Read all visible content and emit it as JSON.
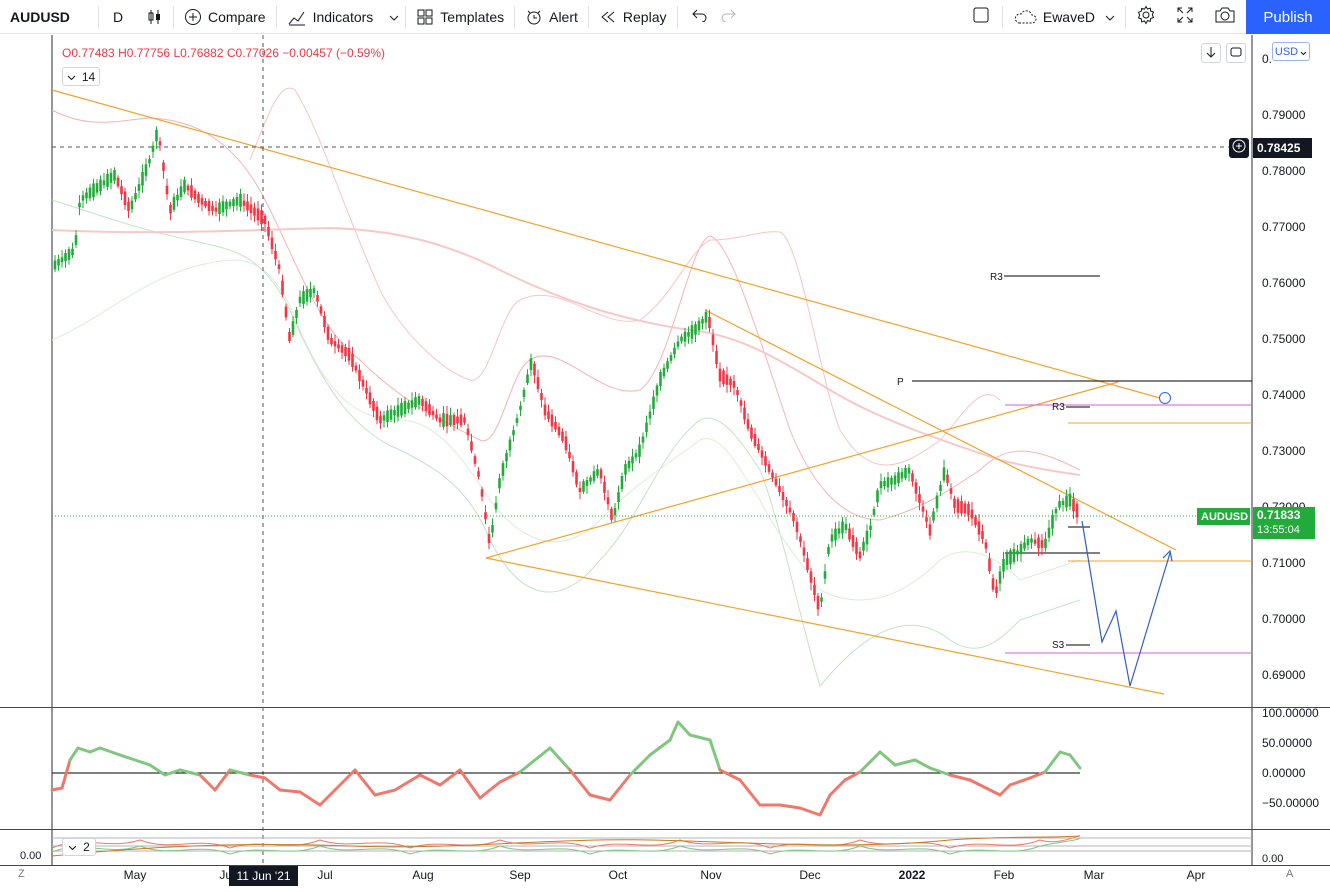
{
  "toolbar": {
    "symbol": "AUDUSD",
    "interval": "D",
    "compare": "Compare",
    "indicators": "Indicators",
    "templates": "Templates",
    "alert": "Alert",
    "replay": "Replay",
    "layout_name": "EwaveD",
    "publish": "Publish"
  },
  "legend": {
    "open": "O0.77483",
    "high": "H0.77756",
    "low": "L0.76882",
    "close": "C0.77026",
    "change": "−0.00457 (−0.59%)",
    "collapse_count": "14",
    "sub_collapse_count": "2"
  },
  "price_scale": {
    "currency": "USD",
    "ticks": [
      "0.79000",
      "0.78000",
      "0.77000",
      "0.76000",
      "0.75000",
      "0.74000",
      "0.73000",
      "0.72000",
      "0.71000",
      "0.70000",
      "0.69000"
    ],
    "top_partial": "0.",
    "crosshair_price": "0.78425",
    "last_symbol": "AUDUSD",
    "last_price": "0.71833",
    "countdown": "13:55:04"
  },
  "osc_scale": {
    "ticks": [
      "100.00000",
      "50.00000",
      "0.00000",
      "−50.00000"
    ],
    "bottom_tick": "0.00",
    "left_value": "0.00"
  },
  "time_axis": {
    "labels": [
      "May",
      "Jun",
      "Jul",
      "Aug",
      "Sep",
      "Oct",
      "Nov",
      "Dec",
      "2022",
      "Feb",
      "Mar",
      "Apr"
    ],
    "crosshair_date": "11 Jun '21"
  },
  "annotations": {
    "pivot_p": "P",
    "r3_upper": "R3",
    "r3_lower": "R3",
    "s3": "S3"
  },
  "corner": {
    "left": "Z",
    "right": "A"
  },
  "colors": {
    "up": "#26a69a",
    "up_candle": "#22ab3a",
    "down": "#f23645",
    "trend": "#f7a02a",
    "accent": "#2962ff",
    "osc_up": "#7fc77f",
    "osc_down": "#f0786a"
  }
}
